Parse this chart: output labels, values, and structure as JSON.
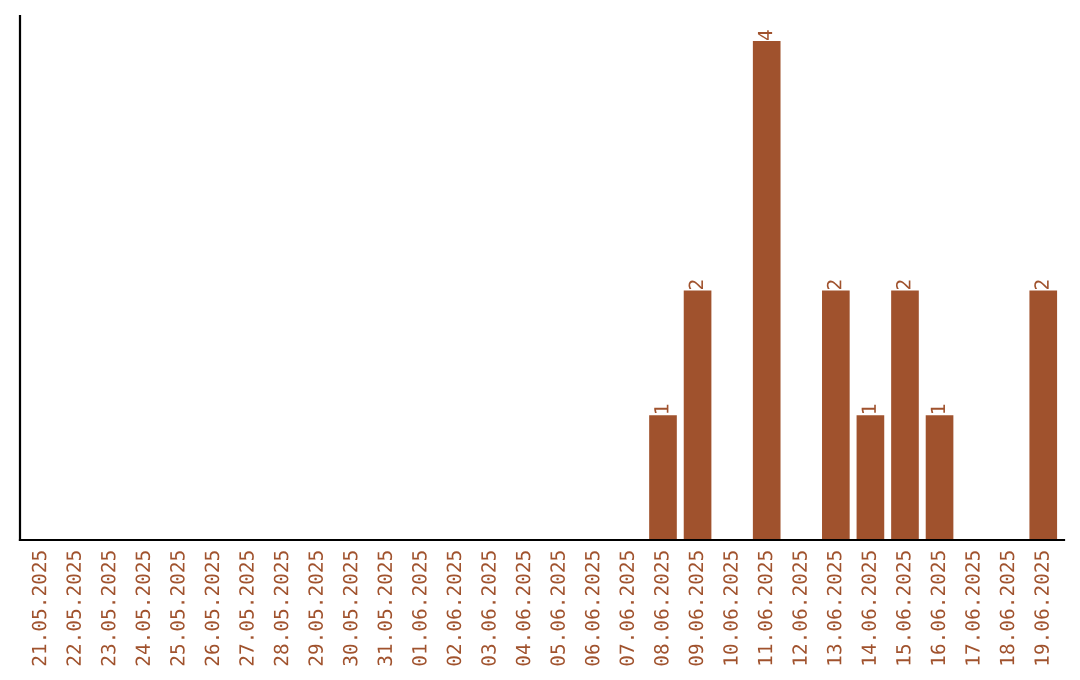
{
  "chart_data": {
    "type": "bar",
    "categories": [
      "21.05.2025",
      "22.05.2025",
      "23.05.2025",
      "24.05.2025",
      "25.05.2025",
      "26.05.2025",
      "27.05.2025",
      "28.05.2025",
      "29.05.2025",
      "30.05.2025",
      "31.05.2025",
      "01.06.2025",
      "02.06.2025",
      "03.06.2025",
      "04.06.2025",
      "05.06.2025",
      "06.06.2025",
      "07.06.2025",
      "08.06.2025",
      "09.06.2025",
      "10.06.2025",
      "11.06.2025",
      "12.06.2025",
      "13.06.2025",
      "14.06.2025",
      "15.06.2025",
      "16.06.2025",
      "17.06.2025",
      "18.06.2025",
      "19.06.2025"
    ],
    "values": [
      null,
      null,
      null,
      null,
      null,
      null,
      null,
      null,
      null,
      null,
      null,
      null,
      null,
      null,
      null,
      null,
      null,
      null,
      1,
      2,
      null,
      4,
      null,
      2,
      1,
      2,
      1,
      null,
      null,
      2
    ],
    "data_labels": true,
    "color": "#a0522d",
    "tick_labels": "x"
  }
}
